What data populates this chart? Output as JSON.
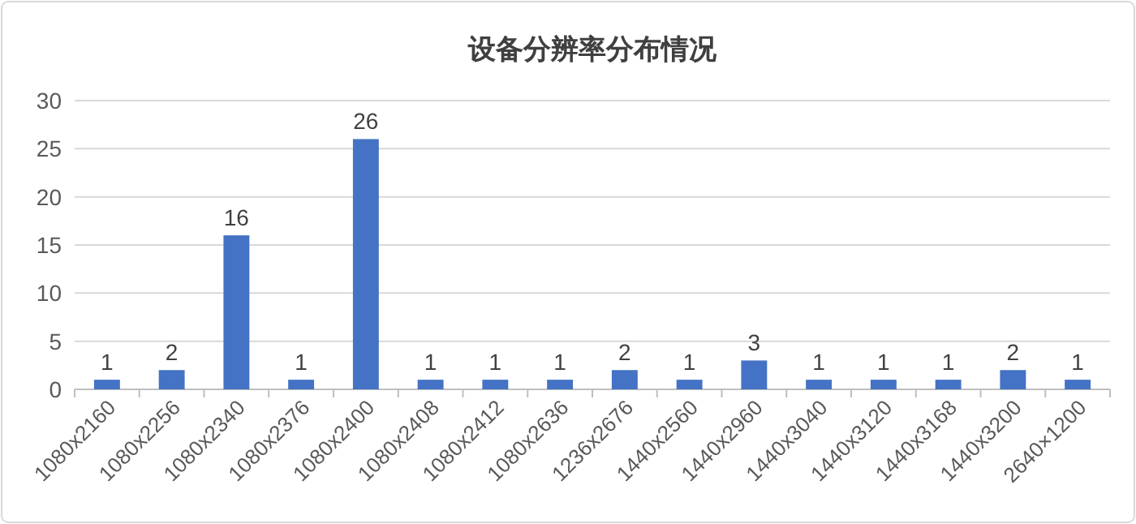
{
  "chart_data": {
    "type": "bar",
    "title": "设备分辨率分布情况",
    "categories": [
      "1080x2160",
      "1080x2256",
      "1080x2340",
      "1080x2376",
      "1080x2400",
      "1080x2408",
      "1080x2412",
      "1080x2636",
      "1236x2676",
      "1440x2560",
      "1440x2960",
      "1440x3040",
      "1440x3120",
      "1440x3168",
      "1440x3200",
      "2640×1200"
    ],
    "values": [
      1,
      2,
      16,
      1,
      26,
      1,
      1,
      1,
      2,
      1,
      3,
      1,
      1,
      1,
      2,
      1
    ],
    "color": "#4472c4",
    "ylim": [
      0,
      30
    ],
    "yticks": [
      0,
      5,
      10,
      15,
      20,
      25,
      30
    ],
    "grid": "y",
    "data_labels": true
  }
}
